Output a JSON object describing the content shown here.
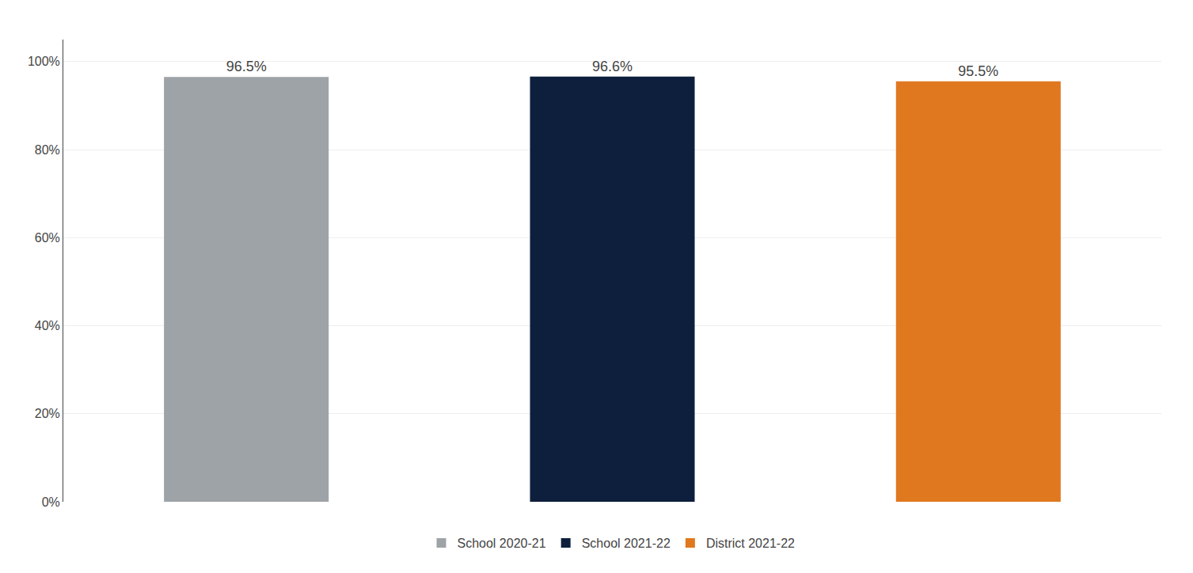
{
  "chart_data": {
    "type": "bar",
    "categories": [
      "School 2020-21",
      "School 2021-22",
      "District 2021-22"
    ],
    "values": [
      96.5,
      96.6,
      95.5
    ],
    "value_labels": [
      "96.5%",
      "96.6%",
      "95.5%"
    ],
    "colors": [
      "#9EA3A8",
      "#0D1F3C",
      "#E07820"
    ],
    "ylim": [
      0,
      105
    ],
    "yticks": [
      {
        "value": 0,
        "label": "0%"
      },
      {
        "value": 20,
        "label": "20%"
      },
      {
        "value": 40,
        "label": "40%"
      },
      {
        "value": 60,
        "label": "60%"
      },
      {
        "value": 80,
        "label": "80%"
      },
      {
        "value": 100,
        "label": "100%"
      }
    ],
    "grid": true,
    "legend": "bottom",
    "data_labels": true,
    "tick_labels": "y"
  }
}
